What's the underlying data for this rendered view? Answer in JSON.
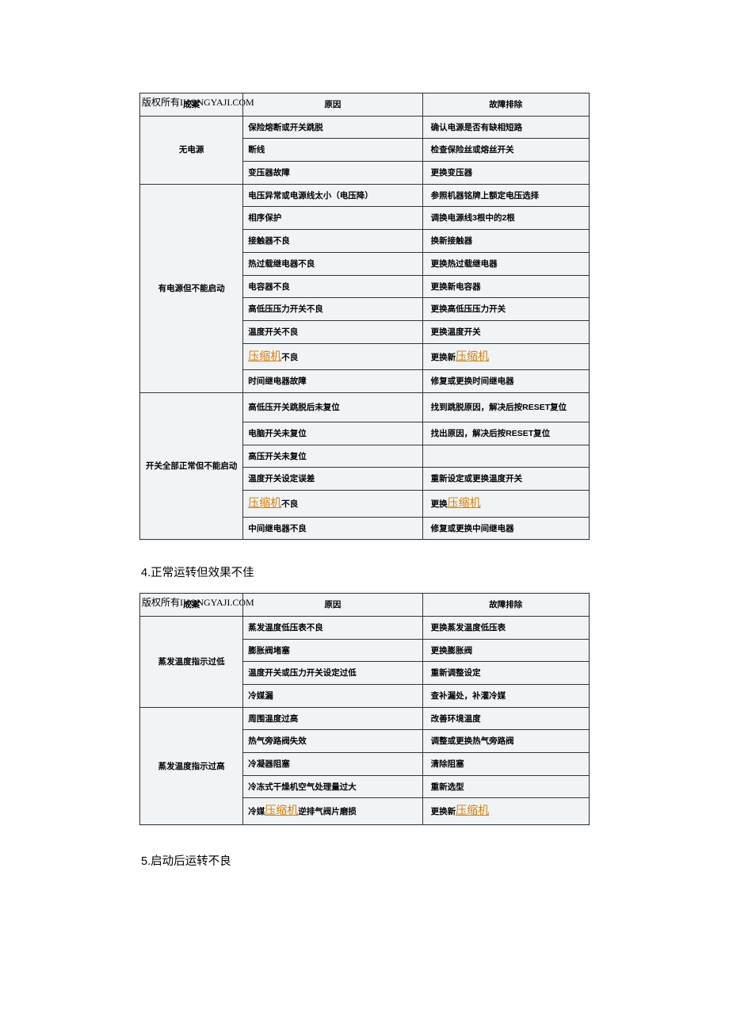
{
  "watermark": "版权所有IKONGYAJI.COM",
  "keyword_text": "压缩机",
  "table1": {
    "headers": [
      "成案",
      "原因",
      "故障排除"
    ],
    "groups": [
      {
        "label": "无电源",
        "rows": [
          {
            "cause": "保险熔断或开关跳脱",
            "fix": "确认电源是否有缺相短路"
          },
          {
            "cause": "断线",
            "fix": "检查保险丝或熔丝开关"
          },
          {
            "cause": "变压器故障",
            "fix": "更换变压器"
          }
        ]
      },
      {
        "label": "有电源但不能启动",
        "rows": [
          {
            "cause": "电压异常或电源线太小（电压降）",
            "fix": "参照机器铭牌上额定电压选择"
          },
          {
            "cause": "相序保护",
            "fix": "调换电源线3根中的2根"
          },
          {
            "cause": "接触器不良",
            "fix": "换新接触器"
          },
          {
            "cause": "热过载继电器不良",
            "fix": "更换热过载继电器"
          },
          {
            "cause": "电容器不良",
            "fix": "更换新电容器"
          },
          {
            "cause": "高低压压力开关不良",
            "fix": "更换高低压压力开关"
          },
          {
            "cause": "温度开关不良",
            "fix": "更换温度开关"
          },
          {
            "cause_pre": "",
            "cause_kw": true,
            "cause_post": "不良",
            "fix_pre": "更换新",
            "fix_kw": true,
            "fix_post": ""
          },
          {
            "cause": "时间继电器故障",
            "fix": "修复或更换时间继电器"
          }
        ]
      },
      {
        "label": "开关全部正常但不能启动",
        "rows": [
          {
            "cause": "高低压开关跳脱后未复位",
            "fix": "找到跳脱原因，解决后按RESET复位"
          },
          {
            "cause": "电脑开关未复位",
            "fix": "找出原因，解决后按RESET复位"
          },
          {
            "cause": "高压开关未复位",
            "fix": ""
          },
          {
            "cause": "温度开关设定误差",
            "fix": "重新设定或更换温度开关"
          },
          {
            "cause_pre": "",
            "cause_kw": true,
            "cause_post": "不良",
            "fix_pre": "更换",
            "fix_kw": true,
            "fix_post": ""
          },
          {
            "cause": "中间继电器不良",
            "fix": "修复或更换中间继电器"
          }
        ]
      }
    ]
  },
  "heading2": "4.正常运转但效果不佳",
  "table2": {
    "headers": [
      "成案",
      "原因",
      "故障排除"
    ],
    "groups": [
      {
        "label": "蒸发温度指示过低",
        "rows": [
          {
            "cause": "蒸发温度低压表不良",
            "fix": "更换蒸发温度低压表"
          },
          {
            "cause": "膨胀阀堵塞",
            "fix": "更换膨胀阀"
          },
          {
            "cause": "温度开关或压力开关设定过低",
            "fix": "重新调整设定"
          },
          {
            "cause": "冷媒漏",
            "fix": "查补漏处，补灌冷媒"
          }
        ]
      },
      {
        "label": "蒸发温度指示过高",
        "rows": [
          {
            "cause": "周围温度过高",
            "fix": "改善环境温度"
          },
          {
            "cause": "热气旁路阀失效",
            "fix": "调整或更换热气旁路阀"
          },
          {
            "cause": "冷凝器阻塞",
            "fix": "清除阻塞"
          },
          {
            "cause": "冷冻式干燥机空气处理量过大",
            "fix": "重新选型"
          },
          {
            "cause_pre": "冷媒",
            "cause_kw": true,
            "cause_post": "逆排气阀片磨损",
            "fix_pre": "更换新",
            "fix_kw": true,
            "fix_post": ""
          }
        ]
      }
    ]
  },
  "heading3": "5.启动后运转不良"
}
